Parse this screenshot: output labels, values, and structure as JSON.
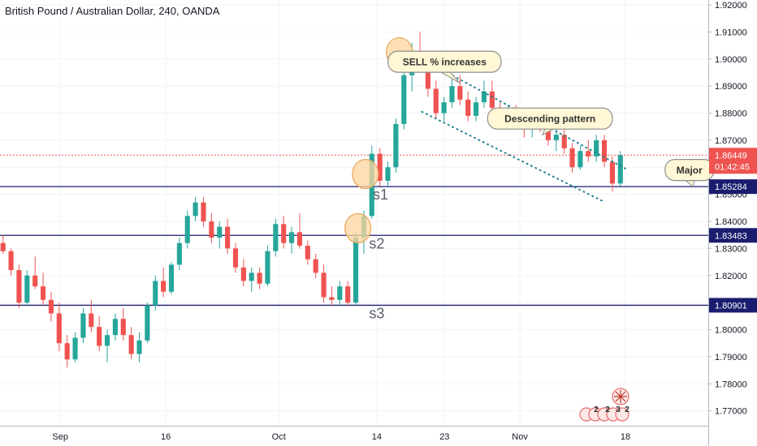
{
  "chart_data": {
    "type": "candlestick",
    "title": "British Pound / Australian Dollar, 240, OANDA",
    "x_tick_labels": [
      {
        "label": "Sep",
        "t": 8
      },
      {
        "label": "16",
        "t": 22
      },
      {
        "label": "Oct",
        "t": 37
      },
      {
        "label": "14",
        "t": 50
      },
      {
        "label": "23",
        "t": 59
      },
      {
        "label": "Nov",
        "t": 69
      },
      {
        "label": "18",
        "t": 83
      }
    ],
    "y_ticks": [
      1.77,
      1.78,
      1.79,
      1.8,
      1.81,
      1.82,
      1.83,
      1.84,
      1.85,
      1.86,
      1.87,
      1.88,
      1.89,
      1.9,
      1.91,
      1.92
    ],
    "y_tick_labels": [
      "1.77000",
      "1.78000",
      "1.79000",
      "1.80000",
      "1.81000",
      "1.82000",
      "1.83000",
      "1.84000",
      "1.85000",
      "1.86000",
      "1.87000",
      "1.88000",
      "1.89000",
      "1.90000",
      "1.91000",
      "1.92000"
    ],
    "ylim": [
      1.7645,
      1.9218
    ],
    "x_range": [
      0,
      94
    ],
    "last_price": {
      "value": 1.86449,
      "label": "1.86449",
      "countdown": "01:42:45",
      "color": "#ef5350"
    },
    "horizontal_levels": [
      {
        "name": "s1",
        "value": 1.85284,
        "label": "1.85284"
      },
      {
        "name": "s2",
        "value": 1.83483,
        "label": "1.83483"
      },
      {
        "name": "s3",
        "value": 1.80901,
        "label": "1.80901"
      }
    ],
    "channel_lines": [
      {
        "from": {
          "t": 55,
          "v": 1.9015
        },
        "to": {
          "t": 83,
          "v": 1.8595
        }
      },
      {
        "from": {
          "t": 56,
          "v": 1.8805
        },
        "to": {
          "t": 80,
          "v": 1.8475
        }
      }
    ],
    "annotations": [
      {
        "text": "SELL % increases",
        "t": 59,
        "v": 1.899,
        "pointer": {
          "t": 61,
          "v": 1.8912
        }
      },
      {
        "text": "Descending pattern",
        "t": 73,
        "v": 1.878,
        "pointer": {
          "t": 72,
          "v": 1.872
        }
      },
      {
        "text": "Major",
        "t": 91.5,
        "v": 1.859,
        "pointer": {
          "t": 92,
          "v": 1.8528
        }
      }
    ],
    "highlight_circles": [
      {
        "t": 53,
        "v": 1.9025
      },
      {
        "t": 48.5,
        "v": 1.8575
      },
      {
        "t": 47.5,
        "v": 1.8375
      }
    ],
    "event_markers": [
      "2",
      "2",
      "3",
      "2"
    ],
    "colors": {
      "up": "#26a69a",
      "down": "#ef5350",
      "level": "#1a1d6e",
      "channel": "#1f7f8f",
      "callout_fill": "#fff7d6",
      "callout_border": "#8c8c8c",
      "circle_fill": "#ffd59e",
      "circle_stroke": "#e8a65a"
    },
    "candles": [
      [
        1.832,
        1.835,
        1.828,
        1.829
      ],
      [
        1.829,
        1.83,
        1.82,
        1.822
      ],
      [
        1.822,
        1.824,
        1.808,
        1.81
      ],
      [
        1.81,
        1.822,
        1.809,
        1.82
      ],
      [
        1.82,
        1.827,
        1.815,
        1.816
      ],
      [
        1.816,
        1.821,
        1.809,
        1.811
      ],
      [
        1.811,
        1.814,
        1.803,
        1.806
      ],
      [
        1.806,
        1.81,
        1.792,
        1.795
      ],
      [
        1.795,
        1.798,
        1.786,
        1.789
      ],
      [
        1.789,
        1.799,
        1.788,
        1.797
      ],
      [
        1.797,
        1.808,
        1.795,
        1.806
      ],
      [
        1.806,
        1.811,
        1.799,
        1.801
      ],
      [
        1.801,
        1.805,
        1.792,
        1.794
      ],
      [
        1.794,
        1.8,
        1.788,
        1.798
      ],
      [
        1.798,
        1.806,
        1.796,
        1.804
      ],
      [
        1.804,
        1.808,
        1.796,
        1.798
      ],
      [
        1.798,
        1.801,
        1.789,
        1.791
      ],
      [
        1.791,
        1.799,
        1.788,
        1.796
      ],
      [
        1.796,
        1.81,
        1.795,
        1.809
      ],
      [
        1.809,
        1.82,
        1.807,
        1.818
      ],
      [
        1.818,
        1.823,
        1.812,
        1.814
      ],
      [
        1.814,
        1.825,
        1.813,
        1.824
      ],
      [
        1.824,
        1.834,
        1.822,
        1.832
      ],
      [
        1.832,
        1.844,
        1.83,
        1.842
      ],
      [
        1.842,
        1.849,
        1.84,
        1.847
      ],
      [
        1.847,
        1.849,
        1.838,
        1.84
      ],
      [
        1.84,
        1.843,
        1.832,
        1.834
      ],
      [
        1.834,
        1.84,
        1.83,
        1.838
      ],
      [
        1.838,
        1.841,
        1.828,
        1.83
      ],
      [
        1.83,
        1.832,
        1.821,
        1.823
      ],
      [
        1.823,
        1.826,
        1.816,
        1.818
      ],
      [
        1.818,
        1.823,
        1.814,
        1.821
      ],
      [
        1.821,
        1.823,
        1.815,
        1.817
      ],
      [
        1.817,
        1.831,
        1.816,
        1.829
      ],
      [
        1.829,
        1.841,
        1.827,
        1.839
      ],
      [
        1.839,
        1.842,
        1.83,
        1.832
      ],
      [
        1.832,
        1.838,
        1.828,
        1.836
      ],
      [
        1.836,
        1.843,
        1.83,
        1.831
      ],
      [
        1.831,
        1.833,
        1.824,
        1.826
      ],
      [
        1.826,
        1.828,
        1.819,
        1.821
      ],
      [
        1.821,
        1.824,
        1.81,
        1.812
      ],
      [
        1.812,
        1.816,
        1.809,
        1.811
      ],
      [
        1.811,
        1.818,
        1.809,
        1.816
      ],
      [
        1.816,
        1.818,
        1.809,
        1.81
      ],
      [
        1.81,
        1.836,
        1.809,
        1.834
      ],
      [
        1.834,
        1.844,
        1.828,
        1.842
      ],
      [
        1.842,
        1.868,
        1.841,
        1.865
      ],
      [
        1.865,
        1.867,
        1.853,
        1.855
      ],
      [
        1.855,
        1.862,
        1.853,
        1.86
      ],
      [
        1.86,
        1.878,
        1.858,
        1.876
      ],
      [
        1.876,
        1.896,
        1.874,
        1.894
      ],
      [
        1.894,
        1.906,
        1.888,
        1.902
      ],
      [
        1.902,
        1.91,
        1.896,
        1.898
      ],
      [
        1.898,
        1.9,
        1.886,
        1.889
      ],
      [
        1.889,
        1.892,
        1.878,
        1.88
      ],
      [
        1.88,
        1.886,
        1.877,
        1.884
      ],
      [
        1.884,
        1.893,
        1.882,
        1.89
      ],
      [
        1.89,
        1.894,
        1.883,
        1.885
      ],
      [
        1.885,
        1.888,
        1.877,
        1.879
      ],
      [
        1.879,
        1.886,
        1.877,
        1.884
      ],
      [
        1.884,
        1.892,
        1.882,
        1.888
      ],
      [
        1.888,
        1.892,
        1.88,
        1.882
      ],
      [
        1.882,
        1.884,
        1.877,
        1.879
      ],
      [
        1.879,
        1.883,
        1.876,
        1.881
      ],
      [
        1.881,
        1.883,
        1.875,
        1.877
      ],
      [
        1.877,
        1.88,
        1.871,
        1.874
      ],
      [
        1.874,
        1.879,
        1.871,
        1.878
      ],
      [
        1.878,
        1.881,
        1.873,
        1.875
      ],
      [
        1.875,
        1.877,
        1.868,
        1.87
      ],
      [
        1.87,
        1.874,
        1.866,
        1.872
      ],
      [
        1.872,
        1.874,
        1.865,
        1.867
      ],
      [
        1.867,
        1.869,
        1.858,
        1.86
      ],
      [
        1.86,
        1.868,
        1.859,
        1.866
      ],
      [
        1.866,
        1.87,
        1.862,
        1.864
      ],
      [
        1.864,
        1.872,
        1.862,
        1.87
      ],
      [
        1.87,
        1.872,
        1.86,
        1.862
      ],
      [
        1.862,
        1.864,
        1.851,
        1.854
      ],
      [
        1.854,
        1.866,
        1.853,
        1.8645
      ]
    ]
  }
}
